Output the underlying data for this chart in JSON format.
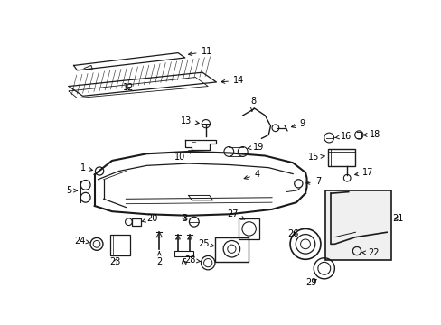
{
  "bg_color": "#ffffff",
  "line_color": "#1a1a1a",
  "text_color": "#000000",
  "font_size": 7.0,
  "fig_width": 4.89,
  "fig_height": 3.6,
  "dpi": 100
}
